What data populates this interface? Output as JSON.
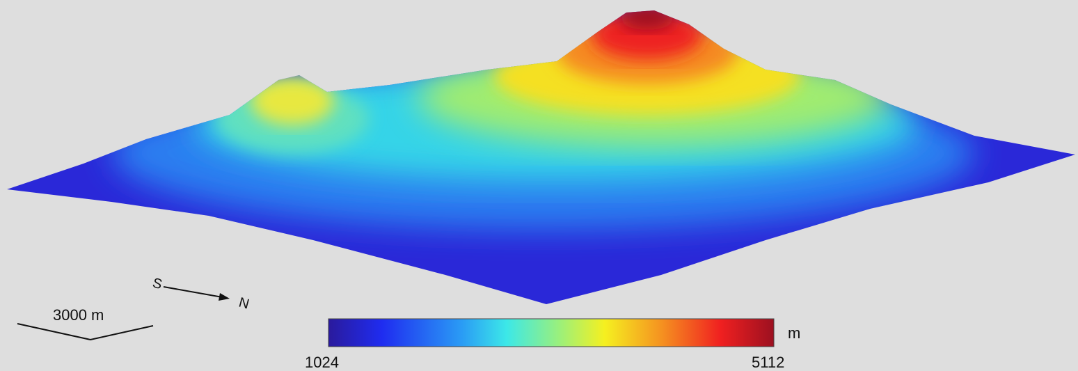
{
  "scale_bar": {
    "label": "3000 m"
  },
  "compass": {
    "from": "S",
    "to": "N"
  },
  "colorbar": {
    "unit": "m",
    "min": 1024,
    "max": 5112
  }
}
